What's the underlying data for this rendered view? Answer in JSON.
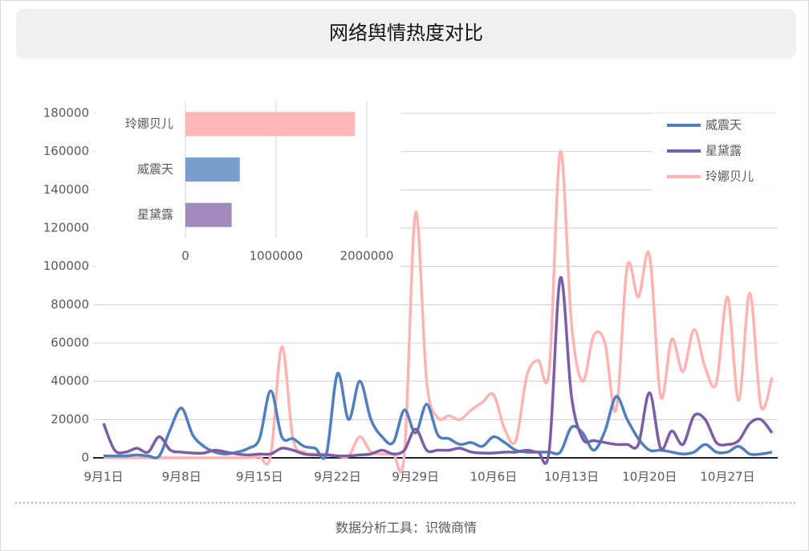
{
  "chart_data": [
    {
      "type": "line",
      "title": "网络舆情热度对比",
      "categories": [
        "9月1日",
        null,
        null,
        null,
        null,
        null,
        null,
        "9月8日",
        null,
        null,
        null,
        null,
        null,
        null,
        "9月15日",
        null,
        null,
        null,
        null,
        null,
        null,
        "9月22日",
        null,
        null,
        null,
        null,
        null,
        null,
        "9月29日",
        null,
        null,
        null,
        null,
        null,
        null,
        "10月6日",
        null,
        null,
        null,
        null,
        null,
        null,
        "10月13日",
        null,
        null,
        null,
        null,
        null,
        null,
        "10月20日",
        null,
        null,
        null,
        null,
        null,
        null,
        "10月27日",
        null,
        null,
        null,
        null
      ],
      "series": [
        {
          "name": "威震天",
          "color": "#4f7fbd",
          "values": [
            1000,
            1000,
            1000,
            1500,
            1000,
            1000,
            15000,
            26000,
            12000,
            6000,
            3000,
            2000,
            3000,
            5000,
            10000,
            35000,
            11000,
            10000,
            6000,
            5000,
            2000,
            44000,
            20000,
            40000,
            20000,
            11000,
            8000,
            25000,
            13000,
            28000,
            12000,
            10000,
            7000,
            8000,
            6000,
            11000,
            8000,
            4000,
            3000,
            3000,
            3000,
            3000,
            16000,
            13000,
            4000,
            14000,
            32000,
            20000,
            10000,
            4000,
            4000,
            3000,
            2000,
            3000,
            7000,
            3000,
            3000,
            6000,
            2000,
            2000,
            3000
          ]
        },
        {
          "name": "星黛露",
          "color": "#7b5ea7",
          "values": [
            18000,
            4000,
            3000,
            5000,
            3000,
            11000,
            4000,
            3000,
            2500,
            2500,
            4000,
            3000,
            2000,
            1500,
            2000,
            2000,
            5000,
            4000,
            2000,
            1500,
            1500,
            1000,
            1000,
            1500,
            2000,
            4000,
            2000,
            4000,
            15000,
            4000,
            4000,
            4000,
            5000,
            3000,
            2500,
            2500,
            3000,
            3000,
            4000,
            3000,
            4000,
            94000,
            32000,
            10000,
            9000,
            8000,
            7000,
            7000,
            7000,
            34000,
            5000,
            14000,
            7000,
            22000,
            20000,
            8000,
            7000,
            9000,
            18000,
            20000,
            13000
          ]
        },
        {
          "name": "玲娜贝儿",
          "color": "#ffb3b3",
          "values": [
            0,
            0,
            0,
            0,
            0,
            0,
            0,
            0,
            0,
            0,
            0,
            0,
            0,
            0,
            500,
            1000,
            58000,
            10000,
            3000,
            2000,
            2000,
            1000,
            1000,
            11000,
            3000,
            2000,
            2000,
            2000,
            128000,
            40000,
            21000,
            22000,
            20000,
            25000,
            29000,
            33000,
            15000,
            9000,
            43000,
            51000,
            46000,
            160000,
            70000,
            40000,
            64000,
            60000,
            25000,
            100000,
            84000,
            106000,
            32000,
            62000,
            45000,
            67000,
            47000,
            39000,
            84000,
            30000,
            86000,
            27000,
            42000
          ]
        }
      ],
      "ylim": [
        0,
        180000
      ],
      "yticks": [
        0,
        20000,
        40000,
        60000,
        80000,
        100000,
        120000,
        140000,
        160000,
        180000
      ],
      "grid": true,
      "legend": "top-right"
    },
    {
      "type": "barh",
      "categories": [
        "玲娜贝儿",
        "威震天",
        "星黛露"
      ],
      "values": [
        1870000,
        600000,
        510000
      ],
      "colors": [
        "#ffb6b6",
        "#7a9fcc",
        "#a08abb"
      ],
      "xlim": [
        0,
        2000000
      ],
      "xticks": [
        0,
        1000000,
        2000000
      ],
      "grid": true
    }
  ],
  "footer": "数据分析工具：识微商情"
}
